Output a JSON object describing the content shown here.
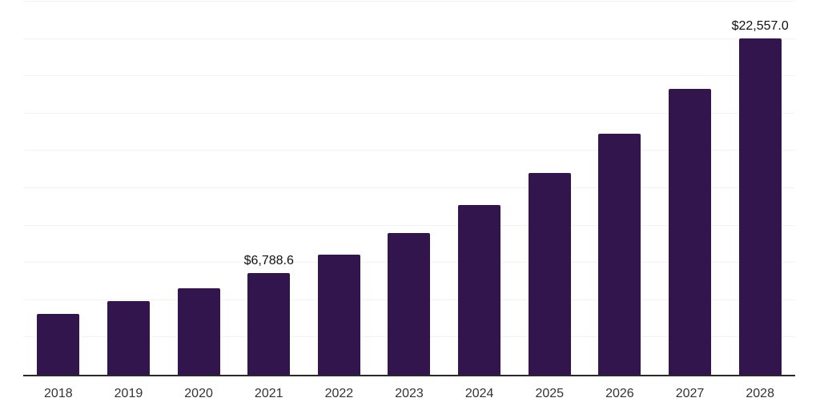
{
  "chart_data": {
    "type": "bar",
    "title": "",
    "xlabel": "",
    "ylabel": "",
    "categories": [
      "2018",
      "2019",
      "2020",
      "2021",
      "2022",
      "2023",
      "2024",
      "2025",
      "2026",
      "2027",
      "2028"
    ],
    "values": [
      4100,
      4930,
      5780,
      6788.6,
      8050,
      9520,
      11400,
      13540,
      16130,
      19150,
      22557.0
    ],
    "data_labels": [
      "",
      "",
      "",
      "$6,788.6",
      "",
      "",
      "",
      "",
      "",
      "",
      "$22,557.0"
    ],
    "ylim": [
      0,
      25000
    ],
    "grid_step": 2500,
    "grid": "horizontal-only",
    "legend_position": "none",
    "colors": {
      "bar": "#32154d",
      "axis_line": "#2a2a2a",
      "gridline": "#f3f3f3",
      "tick_label": "#333333",
      "data_label": "#111111",
      "background": "#ffffff"
    }
  }
}
